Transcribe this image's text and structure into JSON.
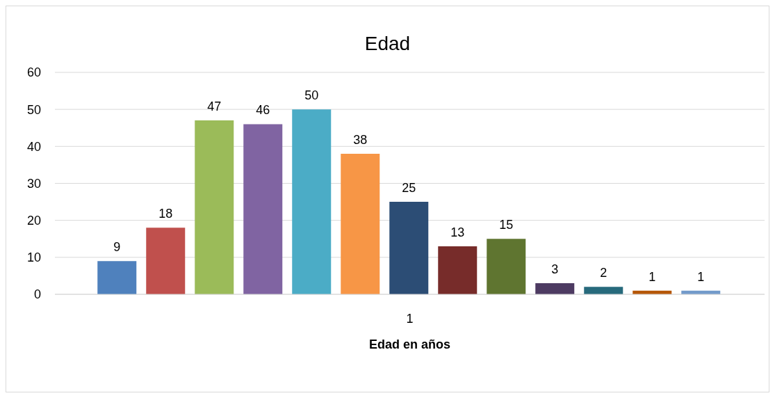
{
  "chart_data": {
    "type": "bar",
    "title": "Edad",
    "xlabel": "Edad en años",
    "categories": [
      "1"
    ],
    "series": [
      {
        "color": "#4f81bd",
        "values": [
          9
        ]
      },
      {
        "color": "#c0504d",
        "values": [
          18
        ]
      },
      {
        "color": "#9bbb59",
        "values": [
          47
        ]
      },
      {
        "color": "#8064a2",
        "values": [
          46
        ]
      },
      {
        "color": "#4bacc6",
        "values": [
          50
        ]
      },
      {
        "color": "#f79646",
        "values": [
          38
        ]
      },
      {
        "color": "#2c4d75",
        "values": [
          25
        ]
      },
      {
        "color": "#772c2a",
        "values": [
          13
        ]
      },
      {
        "color": "#5f7530",
        "values": [
          15
        ]
      },
      {
        "color": "#4d3b62",
        "values": [
          3
        ]
      },
      {
        "color": "#276a7c",
        "values": [
          2
        ]
      },
      {
        "color": "#b65708",
        "values": [
          1
        ]
      },
      {
        "color": "#729aca",
        "values": [
          1
        ]
      }
    ],
    "ylim": [
      0,
      60
    ],
    "yticks": [
      0,
      10,
      20,
      30,
      40,
      50,
      60
    ],
    "grid": "y",
    "data_labels": true,
    "legend": false
  }
}
